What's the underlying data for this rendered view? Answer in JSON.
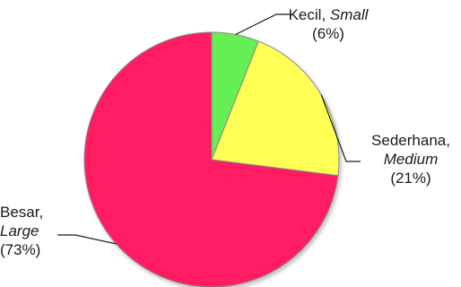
{
  "chart_data": {
    "type": "pie",
    "slices": [
      {
        "label": "Kecil",
        "label_en": "Small",
        "value": 6,
        "value_text": "(6%)",
        "color": "#66ee55"
      },
      {
        "label": "Sederhana,",
        "label_en": "Medium",
        "value": 21,
        "value_text": "(21%)",
        "color": "#ffff55"
      },
      {
        "label": "Besar,",
        "label_en": "Large",
        "value": 73,
        "value_text": "(73%)",
        "color": "#ff1f63"
      }
    ],
    "legend": "none",
    "colors": {
      "outline": "#8a8a8a",
      "leader": "#1a1a1a"
    }
  }
}
